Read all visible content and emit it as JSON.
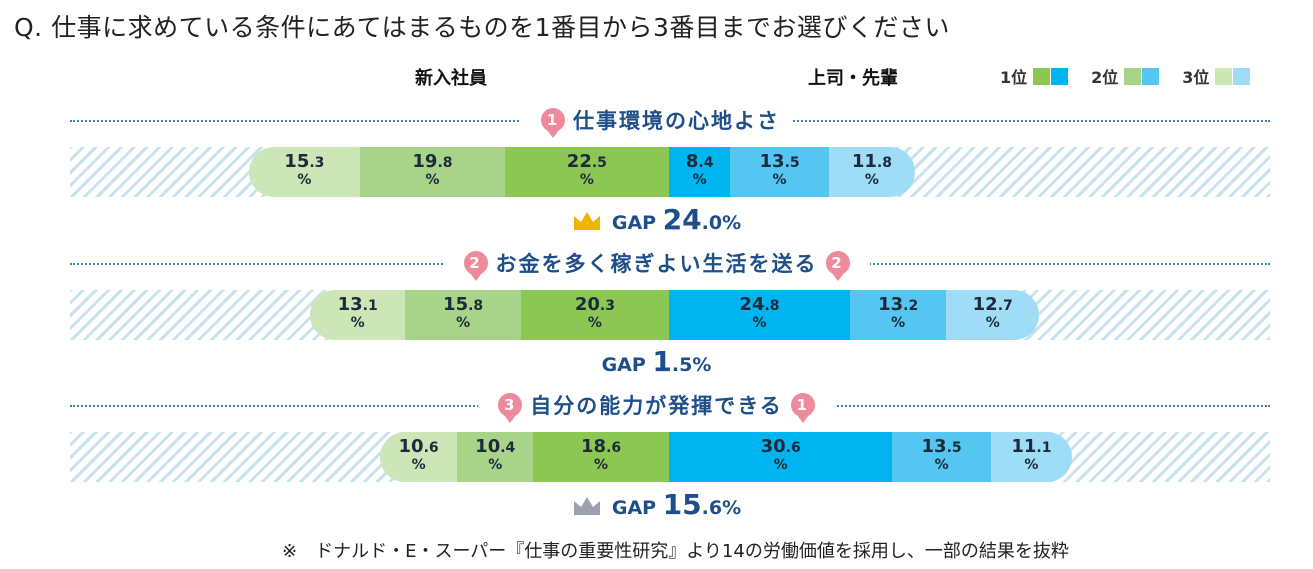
{
  "question": "Q. 仕事に求めている条件にあてはまるものを1番目から3番目までお選びください",
  "columns": {
    "left": "新入社員",
    "right": "上司・先輩"
  },
  "legend": [
    {
      "label": "1位",
      "colors": [
        "#8cc753",
        "#00b5ef"
      ]
    },
    {
      "label": "2位",
      "colors": [
        "#a8d48a",
        "#55c6f2"
      ]
    },
    {
      "label": "3位",
      "colors": [
        "#cde6b8",
        "#9fdcf6"
      ]
    }
  ],
  "chart_data": {
    "type": "bar",
    "series_names": [
      "新入社員",
      "上司・先輩"
    ],
    "rank_labels": [
      "1位",
      "2位",
      "3位"
    ],
    "items": [
      {
        "title": "仕事環境の心地よさ",
        "new_rank": "1",
        "senior_rank": "",
        "new_values": {
          "3位": "15.3",
          "2位": "19.8",
          "1位": "22.5"
        },
        "senior_values": {
          "1位": "8.4",
          "2位": "13.5",
          "3位": "11.8"
        },
        "gap_label": "GAP",
        "gap_int": "24",
        "gap_dec": ".0",
        "gap_unit": "%",
        "crown": "gold"
      },
      {
        "title": "お金を多く稼ぎよい生活を送る",
        "new_rank": "2",
        "senior_rank": "2",
        "new_values": {
          "3位": "13.1",
          "2位": "15.8",
          "1位": "20.3"
        },
        "senior_values": {
          "1位": "24.8",
          "2位": "13.2",
          "3位": "12.7"
        },
        "gap_label": "GAP",
        "gap_int": "1",
        "gap_dec": ".5",
        "gap_unit": "%",
        "crown": "none"
      },
      {
        "title": "自分の能力が発揮できる",
        "new_rank": "3",
        "senior_rank": "1",
        "new_values": {
          "3位": "10.6",
          "2位": "10.4",
          "1位": "18.6"
        },
        "senior_values": {
          "1位": "30.6",
          "2位": "13.5",
          "3位": "11.1"
        },
        "gap_label": "GAP",
        "gap_int": "15",
        "gap_dec": ".6",
        "gap_unit": "%",
        "crown": "silver"
      }
    ]
  },
  "pct_symbol": "%",
  "note": "※　ドナルド・E・スーパー『仕事の重要性研究』より14の労働価値を採用し、一部の結果を抜粋"
}
